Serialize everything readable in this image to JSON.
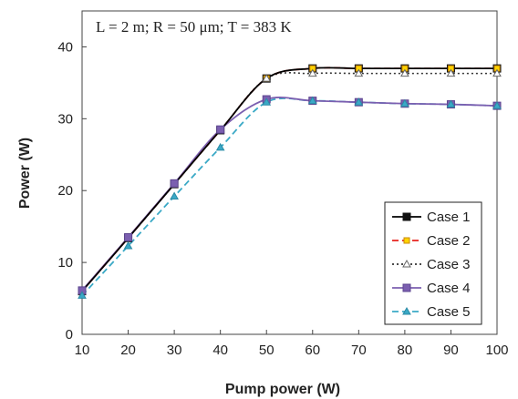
{
  "chart_data": {
    "type": "line",
    "annotation": "L = 2 m; R = 50 μm; T = 383 K",
    "xlabel": "Pump power (W)",
    "ylabel": "Power (W)",
    "xlim": [
      10,
      100
    ],
    "ylim": [
      0,
      45
    ],
    "x_ticks": [
      10,
      20,
      30,
      40,
      50,
      60,
      70,
      80,
      90,
      100
    ],
    "y_ticks": [
      0,
      10,
      20,
      30,
      40
    ],
    "grid": false,
    "legend_position": "bottom-right",
    "x": [
      10,
      20,
      30,
      40,
      50,
      60,
      70,
      80,
      90,
      100
    ],
    "series": [
      {
        "name": "Case 1",
        "color": "#000000",
        "dash": "solid",
        "marker": "square-filled",
        "values": [
          6.0,
          13.4,
          20.9,
          28.4,
          35.6,
          37.0,
          37.0,
          37.0,
          37.0,
          37.0
        ]
      },
      {
        "name": "Case 2",
        "color": "#e8231f",
        "dash": "dash",
        "marker": "square-yellow",
        "values": [
          6.0,
          13.4,
          20.9,
          28.4,
          35.6,
          37.0,
          37.0,
          37.0,
          37.0,
          37.0
        ]
      },
      {
        "name": "Case 3",
        "color": "#333333",
        "dash": "dot",
        "marker": "triangle-open",
        "values": [
          6.0,
          13.4,
          20.9,
          28.4,
          35.6,
          36.3,
          36.3,
          36.3,
          36.3,
          36.3
        ]
      },
      {
        "name": "Case 4",
        "color": "#7b5fb0",
        "dash": "solid",
        "marker": "square-purple",
        "values": [
          6.1,
          13.5,
          21.0,
          28.5,
          32.7,
          32.5,
          32.3,
          32.1,
          32.0,
          31.8
        ]
      },
      {
        "name": "Case 5",
        "color": "#3aa9c6",
        "dash": "dash",
        "marker": "triangle-cyan",
        "values": [
          5.4,
          12.3,
          19.2,
          26.0,
          32.3,
          32.5,
          32.3,
          32.1,
          32.0,
          31.8
        ]
      }
    ]
  }
}
